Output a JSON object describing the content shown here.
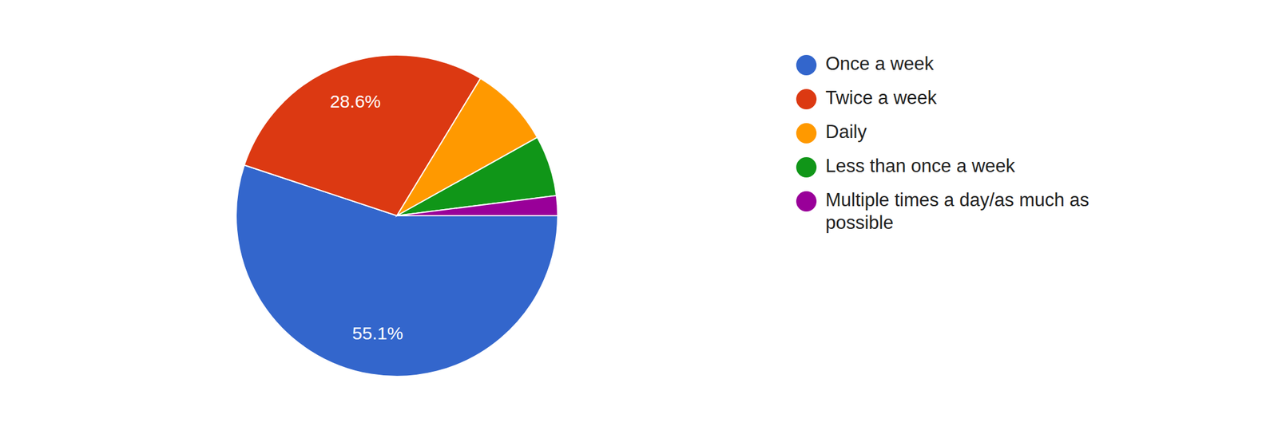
{
  "chart_data": {
    "type": "pie",
    "categories": [
      "Once a week",
      "Twice a week",
      "Daily",
      "Less than once a week",
      "Multiple times a day/as much as possible"
    ],
    "values": [
      55.1,
      28.6,
      8.2,
      6.1,
      2.0
    ],
    "colors": [
      "#3366cc",
      "#dc3912",
      "#ff9900",
      "#109618",
      "#990099"
    ],
    "data_labels": true,
    "value_labels": [
      "55.1%",
      "28.6%",
      null,
      null,
      null
    ]
  }
}
